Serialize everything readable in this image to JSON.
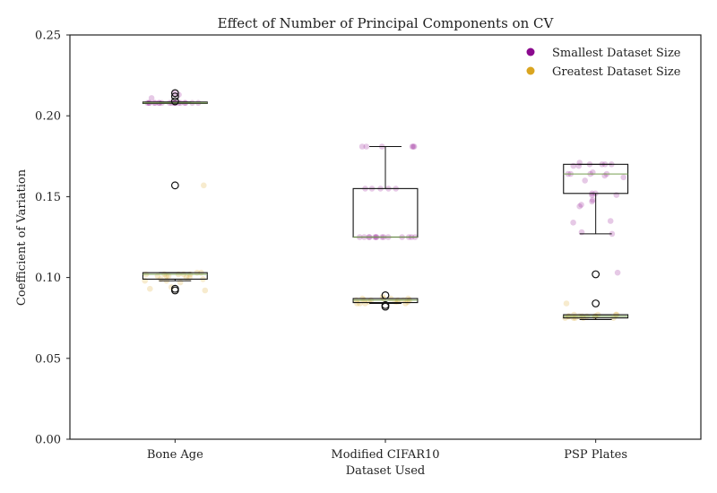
{
  "chart_data": {
    "type": "box",
    "title": "Effect of Number of Principal Components on CV",
    "xlabel": "Dataset Used",
    "ylabel": "Coefficient of Variation",
    "ylim": [
      0.0,
      0.25
    ],
    "yticks": [
      "0.00",
      "0.05",
      "0.10",
      "0.15",
      "0.20",
      "0.25"
    ],
    "categories": [
      "Bone Age",
      "Modified CIFAR10",
      "PSP Plates"
    ],
    "legend": {
      "placement": "top-right",
      "entries": [
        {
          "label": "Smallest Dataset Size",
          "color": "#8b0a8e"
        },
        {
          "label": "Greatest Dataset Size",
          "color": "#daa520"
        }
      ]
    },
    "grid": false,
    "series": [
      {
        "name": "Smallest Dataset Size",
        "color": "#8b0a8e",
        "boxes": [
          {
            "q1": 0.208,
            "median": 0.208,
            "q3": 0.2085,
            "whisker_low": 0.208,
            "whisker_high": 0.2085,
            "outliers": [
              0.214,
              0.212,
              0.209,
              0.157
            ]
          },
          {
            "q1": 0.125,
            "median": 0.125,
            "q3": 0.155,
            "whisker_low": 0.125,
            "whisker_high": 0.181,
            "outliers": []
          },
          {
            "q1": 0.152,
            "median": 0.164,
            "q3": 0.17,
            "whisker_low": 0.127,
            "whisker_high": 0.17,
            "outliers": [
              0.102
            ]
          }
        ],
        "points": [
          [
            0.214,
            0.213,
            0.211,
            0.208,
            0.208,
            0.208,
            0.208,
            0.208,
            0.208,
            0.208,
            0.208,
            0.208,
            0.208,
            0.208,
            0.208,
            0.208,
            0.208,
            0.208,
            0.208,
            0.208,
            0.208,
            0.208
          ],
          [
            0.181,
            0.181,
            0.181,
            0.181,
            0.181,
            0.181,
            0.155,
            0.155,
            0.155,
            0.155,
            0.155,
            0.125,
            0.125,
            0.125,
            0.125,
            0.125,
            0.125,
            0.125,
            0.125,
            0.125,
            0.125,
            0.125,
            0.125,
            0.125,
            0.125
          ],
          [
            0.171,
            0.17,
            0.17,
            0.17,
            0.17,
            0.169,
            0.169,
            0.165,
            0.164,
            0.164,
            0.164,
            0.164,
            0.163,
            0.162,
            0.16,
            0.152,
            0.152,
            0.151,
            0.151,
            0.148,
            0.147,
            0.145,
            0.144,
            0.135,
            0.134,
            0.128,
            0.127,
            0.103
          ]
        ]
      },
      {
        "name": "Greatest Dataset Size",
        "color": "#daa520",
        "boxes": [
          {
            "q1": 0.099,
            "median": 0.102,
            "q3": 0.103,
            "whisker_low": 0.098,
            "whisker_high": 0.103,
            "outliers": [
              0.093,
              0.092
            ]
          },
          {
            "q1": 0.0845,
            "median": 0.086,
            "q3": 0.087,
            "whisker_low": 0.084,
            "whisker_high": 0.087,
            "outliers": [
              0.089,
              0.083,
              0.082
            ]
          },
          {
            "q1": 0.075,
            "median": 0.076,
            "q3": 0.077,
            "whisker_low": 0.074,
            "whisker_high": 0.077,
            "outliers": [
              0.084
            ]
          }
        ],
        "points": [
          [
            0.157,
            0.103,
            0.103,
            0.102,
            0.102,
            0.102,
            0.102,
            0.102,
            0.101,
            0.101,
            0.101,
            0.1,
            0.1,
            0.099,
            0.099,
            0.098,
            0.098,
            0.097,
            0.094,
            0.093,
            0.092
          ],
          [
            0.088,
            0.087,
            0.087,
            0.087,
            0.087,
            0.086,
            0.086,
            0.086,
            0.086,
            0.086,
            0.086,
            0.085,
            0.085,
            0.085,
            0.085,
            0.084,
            0.084,
            0.084,
            0.084
          ],
          [
            0.084,
            0.077,
            0.077,
            0.077,
            0.077,
            0.076,
            0.076,
            0.076,
            0.076,
            0.076,
            0.076,
            0.076,
            0.075,
            0.075,
            0.075,
            0.075,
            0.075
          ]
        ]
      }
    ]
  }
}
